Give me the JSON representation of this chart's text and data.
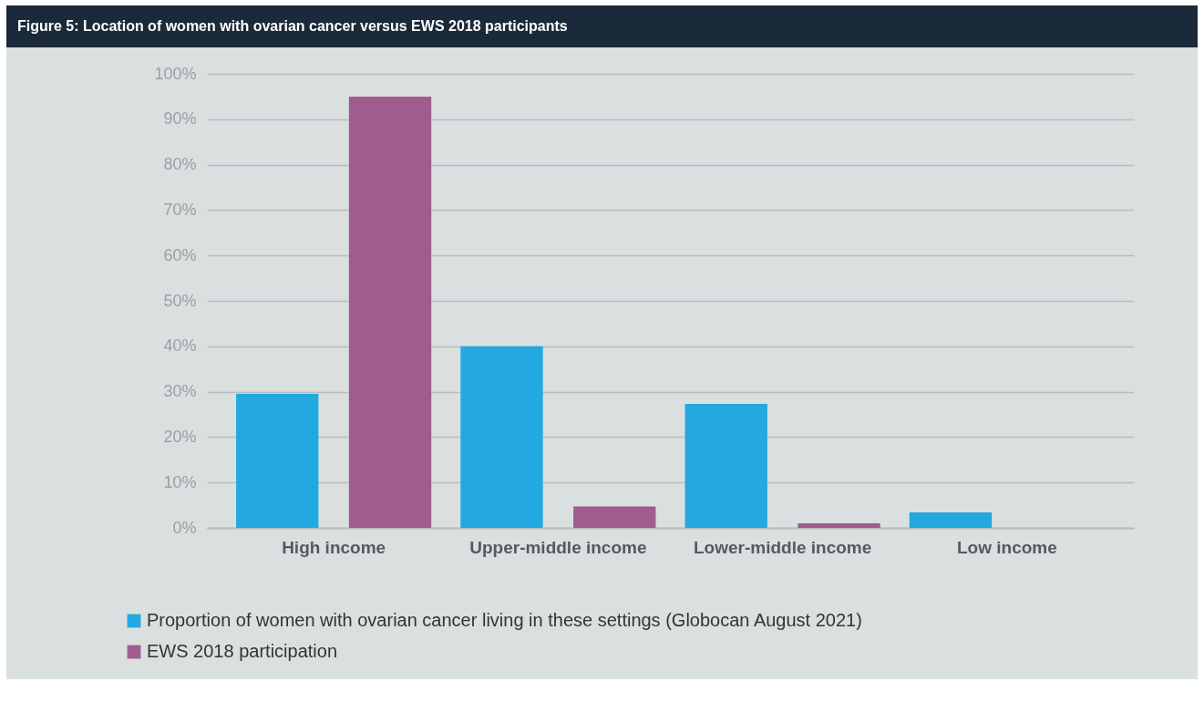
{
  "chart_data": {
    "type": "bar",
    "title": "Figure 5: Location of women with ovarian cancer versus EWS 2018 participants",
    "categories": [
      "High income",
      "Upper-middle income",
      "Lower-middle income",
      "Low income"
    ],
    "series": [
      {
        "name": "Proportion of women with ovarian cancer living in these settings (Globocan August 2021)",
        "color": "#23a8e0",
        "values": [
          29.5,
          40,
          27.3,
          3.4
        ]
      },
      {
        "name": "EWS 2018 participation",
        "color": "#9e5d8d",
        "values": [
          95,
          4.7,
          1,
          null
        ]
      }
    ],
    "ylim": [
      0,
      100
    ],
    "yticks": [
      {
        "value": 0,
        "label": "0%"
      },
      {
        "value": 10,
        "label": "10%"
      },
      {
        "value": 20,
        "label": "20%"
      },
      {
        "value": 30,
        "label": "30%"
      },
      {
        "value": 40,
        "label": "40%"
      },
      {
        "value": 50,
        "label": "50%"
      },
      {
        "value": 60,
        "label": "60%"
      },
      {
        "value": 70,
        "label": "70%"
      },
      {
        "value": 80,
        "label": "80%"
      },
      {
        "value": 90,
        "label": "90%"
      },
      {
        "value": 100,
        "label": "100%"
      }
    ],
    "grid": "y",
    "legend": "bottom left"
  }
}
